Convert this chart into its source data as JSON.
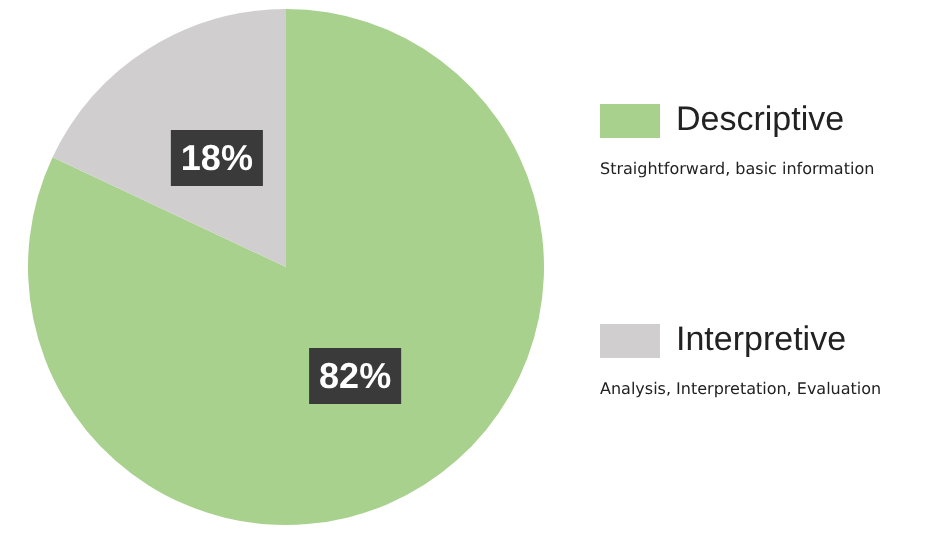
{
  "chart_data": {
    "type": "pie",
    "categories": [
      "Descriptive",
      "Interpretive"
    ],
    "values": [
      82,
      18
    ],
    "colors": [
      "#a9d18e",
      "#d0cece"
    ],
    "value_labels": [
      "82%",
      "18%"
    ],
    "legend": "right",
    "annotations": [
      "Straightforward, basic information",
      "Analysis, Interpretation, Evaluation"
    ]
  }
}
